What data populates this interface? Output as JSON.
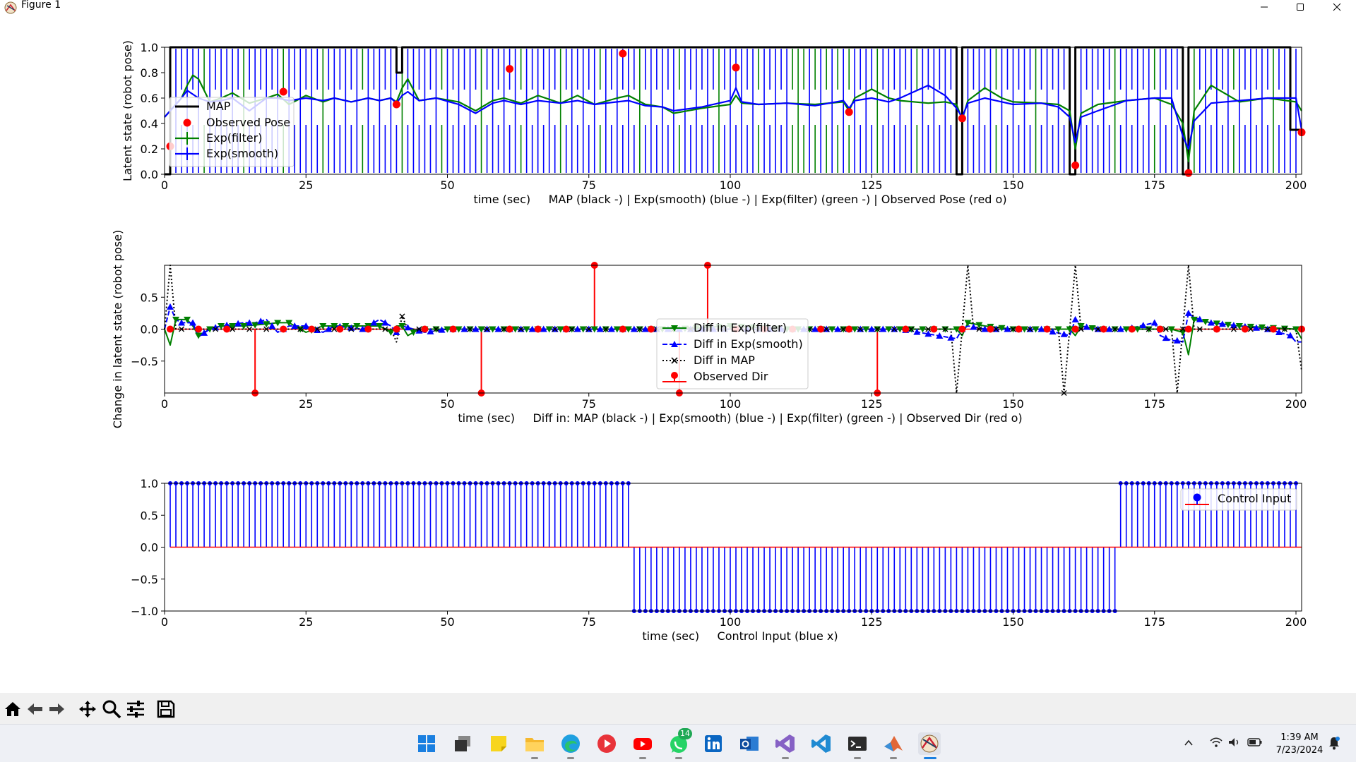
{
  "window": {
    "title": "Figure 1",
    "minimize_icon": "minimize-icon",
    "maximize_icon": "maximize-icon",
    "close_icon": "close-icon"
  },
  "chart_data": [
    {
      "type": "line",
      "title": "",
      "xlabel": "time (sec)     MAP (black -) | Exp(smooth) (blue -) | Exp(filter) (green -) | Observed Pose (red o)",
      "ylabel": "Latent state (robot pose)",
      "xlim": [
        0,
        201
      ],
      "ylim": [
        0,
        1
      ],
      "xticks": [
        "0",
        "25",
        "50",
        "75",
        "100",
        "125",
        "150",
        "175",
        "200"
      ],
      "yticks": [
        "0.0",
        "0.2",
        "0.4",
        "0.6",
        "0.8",
        "1.0"
      ],
      "legend_position": "left",
      "legend": [
        "MAP",
        "Observed Pose",
        "Exp(filter)",
        "Exp(smooth)"
      ],
      "colors": {
        "map": "#000000",
        "observed": "#ff0000",
        "filter": "#008000",
        "smooth": "#0000ff"
      },
      "series": [
        {
          "name": "MAP",
          "x": [
            0,
            1,
            1,
            41,
            41,
            42,
            42,
            140,
            140,
            141,
            141,
            160,
            160,
            161,
            161,
            180,
            180,
            181,
            181,
            199,
            199,
            201
          ],
          "values": [
            0,
            0,
            1,
            1,
            0.8,
            0.8,
            1,
            1,
            0,
            0,
            1,
            1,
            0,
            0,
            1,
            1,
            0,
            0,
            1,
            1,
            0.35,
            0.35
          ]
        },
        {
          "name": "Observed Pose",
          "x": [
            1,
            21,
            41,
            61,
            81,
            101,
            121,
            141,
            161,
            181,
            201
          ],
          "values": [
            0.22,
            0.65,
            0.55,
            0.83,
            0.95,
            0.84,
            0.49,
            0.44,
            0.07,
            0.01,
            0.33
          ]
        },
        {
          "name": "Exp(filter)",
          "x": [
            0,
            1,
            2,
            3,
            4,
            5,
            6,
            8,
            10,
            12,
            15,
            18,
            20,
            22,
            25,
            28,
            30,
            33,
            36,
            38,
            40,
            41,
            42,
            43,
            45,
            48,
            52,
            55,
            58,
            60,
            63,
            66,
            70,
            73,
            76,
            80,
            82,
            85,
            88,
            90,
            95,
            100,
            101,
            102,
            105,
            110,
            115,
            120,
            121,
            122,
            125,
            128,
            130,
            135,
            138,
            140,
            141,
            142,
            145,
            148,
            150,
            155,
            158,
            160,
            161,
            162,
            165,
            170,
            175,
            178,
            180,
            181,
            182,
            185,
            190,
            195,
            200,
            201
          ],
          "values": [
            0.45,
            0.5,
            0.55,
            0.6,
            0.7,
            0.78,
            0.75,
            0.57,
            0.6,
            0.64,
            0.56,
            0.6,
            0.63,
            0.55,
            0.62,
            0.57,
            0.6,
            0.57,
            0.6,
            0.58,
            0.6,
            0.57,
            0.68,
            0.75,
            0.58,
            0.6,
            0.57,
            0.5,
            0.58,
            0.6,
            0.56,
            0.62,
            0.56,
            0.62,
            0.55,
            0.6,
            0.62,
            0.55,
            0.53,
            0.48,
            0.52,
            0.55,
            0.62,
            0.56,
            0.55,
            0.56,
            0.55,
            0.57,
            0.5,
            0.6,
            0.67,
            0.6,
            0.58,
            0.56,
            0.57,
            0.55,
            0.43,
            0.58,
            0.68,
            0.6,
            0.57,
            0.56,
            0.55,
            0.5,
            0.2,
            0.48,
            0.55,
            0.58,
            0.6,
            0.55,
            0.4,
            0.1,
            0.5,
            0.7,
            0.57,
            0.6,
            0.57,
            0.5
          ]
        },
        {
          "name": "Exp(smooth)",
          "x": [
            0,
            1,
            2,
            3,
            4,
            6,
            8,
            10,
            12,
            15,
            18,
            20,
            22,
            25,
            28,
            30,
            33,
            36,
            38,
            40,
            41,
            42,
            43,
            45,
            48,
            52,
            55,
            58,
            60,
            63,
            66,
            70,
            73,
            76,
            80,
            82,
            85,
            88,
            90,
            95,
            100,
            101,
            102,
            105,
            110,
            115,
            120,
            121,
            122,
            125,
            128,
            130,
            135,
            138,
            140,
            141,
            142,
            145,
            148,
            150,
            155,
            158,
            160,
            161,
            162,
            165,
            170,
            175,
            178,
            180,
            181,
            182,
            185,
            190,
            195,
            200,
            201
          ],
          "values": [
            0.45,
            0.5,
            0.55,
            0.6,
            0.66,
            0.6,
            0.57,
            0.58,
            0.6,
            0.5,
            0.6,
            0.6,
            0.58,
            0.6,
            0.58,
            0.6,
            0.57,
            0.6,
            0.58,
            0.6,
            0.56,
            0.62,
            0.65,
            0.58,
            0.6,
            0.55,
            0.48,
            0.56,
            0.58,
            0.55,
            0.58,
            0.56,
            0.58,
            0.55,
            0.57,
            0.58,
            0.54,
            0.53,
            0.5,
            0.53,
            0.58,
            0.68,
            0.57,
            0.55,
            0.56,
            0.54,
            0.58,
            0.52,
            0.58,
            0.6,
            0.57,
            0.6,
            0.7,
            0.62,
            0.52,
            0.45,
            0.56,
            0.6,
            0.57,
            0.55,
            0.56,
            0.53,
            0.45,
            0.25,
            0.45,
            0.5,
            0.58,
            0.6,
            0.6,
            0.3,
            0.2,
            0.42,
            0.56,
            0.58,
            0.6,
            0.6,
            0.35
          ]
        }
      ],
      "stem_series": {
        "x_start": 1,
        "x_end": 200,
        "step": 1,
        "note_style": "alternating vertical uncertainty bars"
      }
    },
    {
      "type": "line",
      "title": "",
      "xlabel": "time (sec)     Diff in: MAP (black -) | Exp(smooth) (blue -) | Exp(filter) (green -) | Observed Dir (red o)",
      "ylabel": "Change in latent state (robot pose)",
      "xlim": [
        0,
        201
      ],
      "ylim": [
        -1,
        1
      ],
      "xticks": [
        "0",
        "25",
        "50",
        "75",
        "100",
        "125",
        "150",
        "175",
        "200"
      ],
      "yticks": [
        "−0.5",
        "0.0",
        "0.5"
      ],
      "legend_position": "center",
      "legend": [
        "Diff in Exp(filter)",
        "Diff in Exp(smooth)",
        "Diff in MAP",
        "Observed Dir"
      ],
      "colors": {
        "map": "#000000",
        "observed": "#ff0000",
        "filter": "#008000",
        "smooth": "#0000ff"
      },
      "series": [
        {
          "name": "Diff in MAP",
          "x": [
            0,
            1,
            2,
            3,
            40,
            41,
            42,
            43,
            139,
            140,
            141,
            142,
            143,
            158,
            159,
            160,
            161,
            162,
            178,
            179,
            180,
            181,
            182,
            200,
            201
          ],
          "values": [
            0,
            1,
            0,
            0,
            0,
            -0.2,
            0.2,
            0,
            0,
            -1,
            0,
            1,
            0,
            0,
            -1,
            0,
            1,
            0,
            0,
            -1,
            0,
            1,
            0,
            0,
            -0.65
          ]
        },
        {
          "name": "Diff in Exp(smooth)",
          "x": [
            0,
            1,
            2,
            3,
            5,
            6,
            8,
            10,
            14,
            16,
            18,
            20,
            22,
            25,
            28,
            30,
            35,
            38,
            40,
            41,
            42,
            44,
            46,
            50,
            55,
            60,
            70,
            80,
            90,
            100,
            110,
            120,
            130,
            140,
            141,
            142,
            145,
            150,
            155,
            160,
            161,
            162,
            165,
            170,
            175,
            176,
            178,
            179,
            180,
            181,
            182,
            185,
            190,
            195,
            199,
            200,
            201
          ],
          "values": [
            0,
            0.35,
            0.15,
            0.1,
            0.1,
            -0.12,
            0,
            0.05,
            0.1,
            0.1,
            0.15,
            -0.05,
            0.05,
            0.05,
            -0.05,
            0.05,
            0,
            0.15,
            0.05,
            -0.05,
            0.05,
            0,
            -0.05,
            0,
            0,
            0,
            0,
            0,
            0,
            0,
            0,
            0,
            0,
            -0.15,
            0,
            0.05,
            0,
            0,
            0,
            -0.1,
            0.15,
            0.05,
            0,
            0,
            0.1,
            -0.1,
            -0.18,
            -0.18,
            -0.2,
            0.25,
            0.18,
            0.1,
            0.05,
            0,
            -0.1,
            -0.2,
            -0.2
          ]
        },
        {
          "name": "Diff in Exp(filter)",
          "x": [
            0,
            1,
            2,
            3,
            4,
            5,
            6,
            8,
            10,
            14,
            18,
            20,
            22,
            25,
            28,
            30,
            38,
            40,
            41,
            42,
            43,
            45,
            50,
            60,
            70,
            80,
            90,
            100,
            110,
            120,
            130,
            140,
            141,
            142,
            145,
            150,
            160,
            161,
            162,
            165,
            170,
            175,
            178,
            180,
            181,
            182,
            185,
            190,
            200,
            201
          ],
          "values": [
            0,
            -0.25,
            0.15,
            0.15,
            0.15,
            0.05,
            -0.1,
            0,
            0.05,
            0.05,
            0.08,
            0.1,
            0.1,
            -0.05,
            0.05,
            0.05,
            0.05,
            -0.05,
            0.05,
            0.05,
            -0.1,
            0,
            0,
            0,
            0,
            0,
            0,
            0.05,
            0,
            0,
            0,
            0,
            -0.1,
            0.1,
            0.05,
            0,
            0,
            -0.1,
            0.05,
            0,
            0,
            0,
            0,
            -0.05,
            -0.4,
            0.15,
            0.1,
            0.05,
            0,
            -0.15
          ]
        },
        {
          "name": "Observed Dir",
          "x": [
            1,
            6,
            11,
            16,
            21,
            26,
            31,
            36,
            41,
            46,
            51,
            56,
            61,
            66,
            71,
            76,
            81,
            86,
            91,
            96,
            101,
            106,
            111,
            116,
            121,
            126,
            131,
            136,
            141,
            146,
            151,
            156,
            161,
            166,
            171,
            176,
            181,
            186,
            191,
            196,
            201
          ],
          "values": [
            0,
            0,
            0,
            -1,
            0,
            0,
            0,
            0,
            0,
            0,
            0,
            -1,
            0,
            0,
            0,
            1,
            0,
            0,
            -1,
            1,
            0,
            0,
            0,
            0,
            0,
            -1,
            0,
            0,
            0,
            0,
            0,
            0,
            0,
            0,
            0,
            0,
            0,
            0,
            0,
            0,
            0
          ]
        }
      ]
    },
    {
      "type": "line",
      "title": "",
      "xlabel": "time (sec)     Control Input (blue x)",
      "ylabel": "",
      "xlim": [
        0,
        201
      ],
      "ylim": [
        -1,
        1
      ],
      "xticks": [
        "0",
        "25",
        "50",
        "75",
        "100",
        "125",
        "150",
        "175",
        "200"
      ],
      "yticks": [
        "−1.0",
        "−0.5",
        "0.0",
        "0.5",
        "1.0"
      ],
      "legend_position": "top-right",
      "legend": [
        "Control Input"
      ],
      "colors": {
        "stem": "#0000ff",
        "baseline": "#ff0000"
      },
      "series": [
        {
          "name": "Control Input",
          "segments": [
            {
              "x_start": 1,
              "x_end": 82,
              "value": 1
            },
            {
              "x_start": 83,
              "x_end": 168,
              "value": -1
            },
            {
              "x_start": 169,
              "x_end": 200,
              "value": 1
            }
          ]
        }
      ]
    }
  ],
  "toolbar": {
    "icons": [
      "home-icon",
      "back-icon",
      "forward-icon",
      "pan-icon",
      "zoom-icon",
      "configure-icon",
      "save-icon"
    ]
  },
  "taskbar": {
    "apps": [
      "start-icon",
      "task-view-icon",
      "sticky-notes-icon",
      "file-explorer-icon",
      "edge-icon",
      "media-player-icon",
      "youtube-icon",
      "whatsapp-icon",
      "linkedin-icon",
      "outlook-icon",
      "visual-studio-icon",
      "vscode-icon",
      "terminal-icon",
      "matlab-icon",
      "figure-app-icon"
    ],
    "whatsapp_badge": "14",
    "clock_time": "1:39 AM",
    "clock_date": "7/23/2024"
  }
}
